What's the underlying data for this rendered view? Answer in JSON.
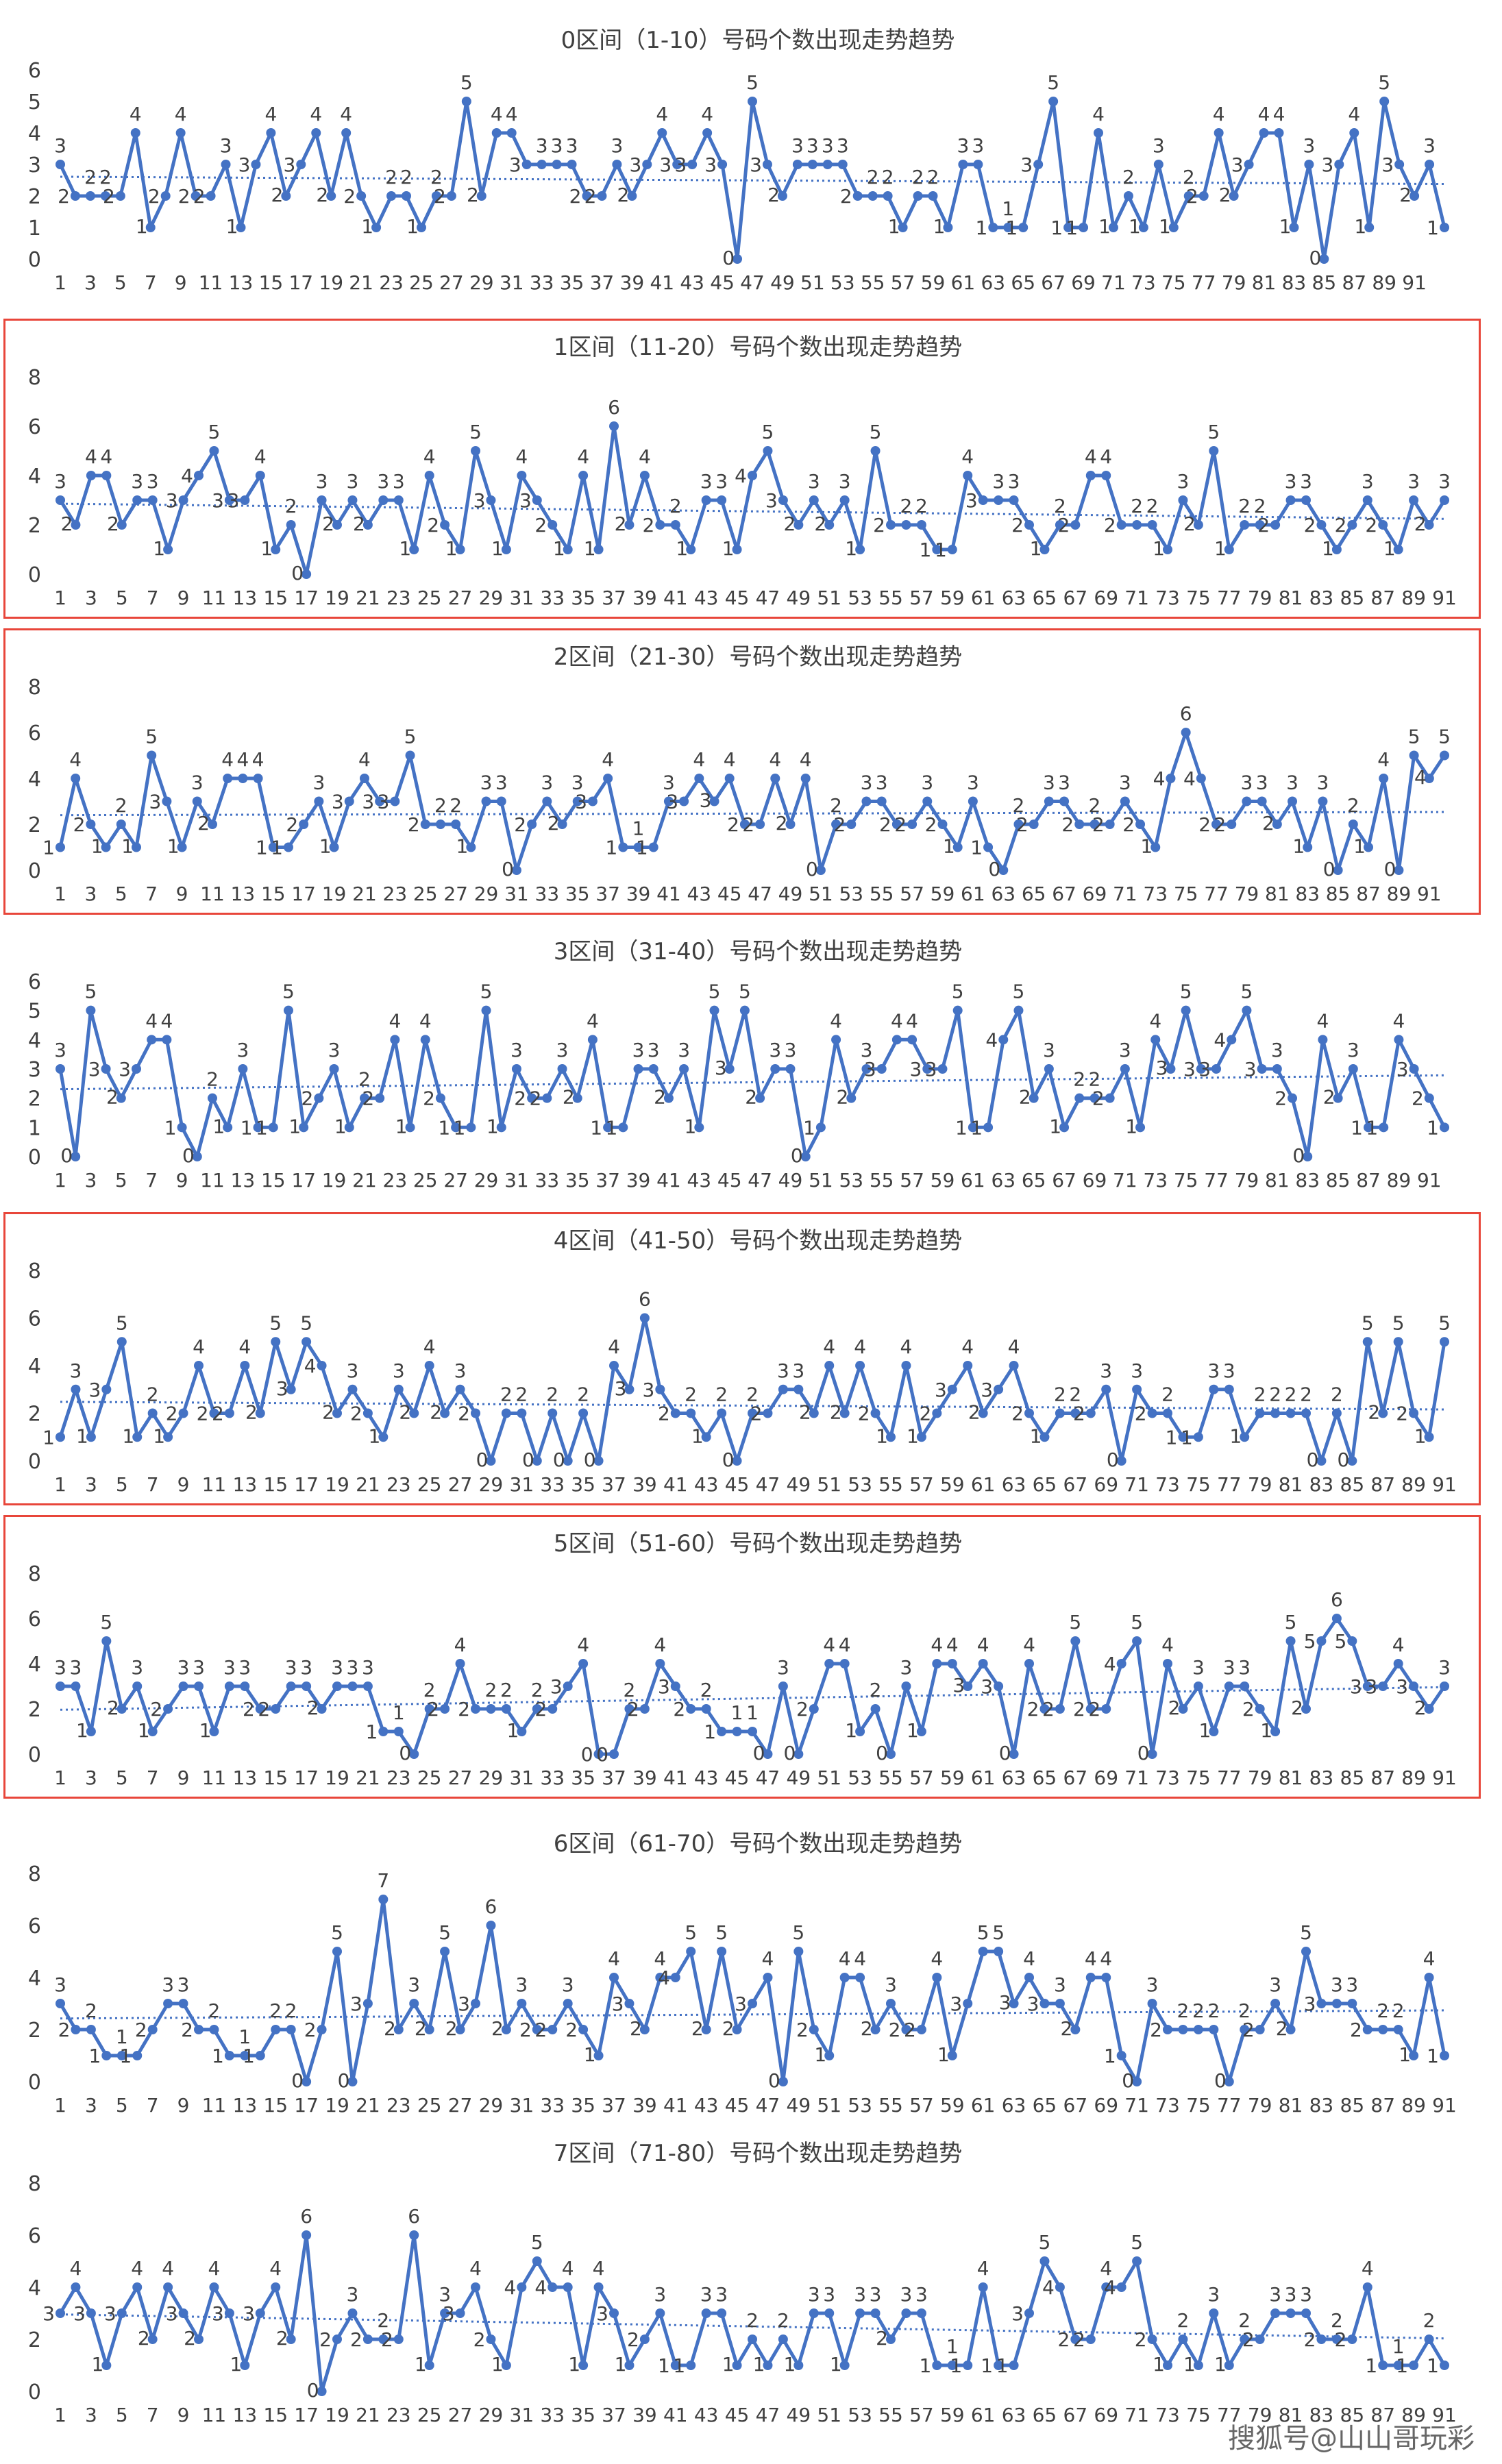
{
  "colors": {
    "line": "#4472c4",
    "trend": "#4472c4",
    "frame": "#e8463a",
    "grid": "#d9d9d9"
  },
  "footer": "搜狐号@山山哥玩彩",
  "chart_data": [
    {
      "type": "line",
      "title": "0区间（1-10）号码个数出现走势趋势",
      "ylim": [
        0,
        6
      ],
      "yticks": [
        0,
        1,
        2,
        3,
        4,
        5,
        6
      ],
      "xticks": [
        "1",
        "3",
        "5",
        "7",
        "9",
        "11",
        "13",
        "15",
        "17",
        "19",
        "21",
        "23",
        "25",
        "27",
        "29",
        "31",
        "33",
        "35",
        "37",
        "39",
        "41",
        "43",
        "45",
        "47",
        "49",
        "51",
        "53",
        "55",
        "57",
        "59",
        "61",
        "63",
        "65",
        "67",
        "69",
        "71",
        "73",
        "75",
        "77",
        "79",
        "81",
        "83",
        "85",
        "87",
        "89",
        "91"
      ],
      "values": [
        3,
        2,
        2,
        2,
        2,
        4,
        1,
        2,
        4,
        2,
        2,
        3,
        1,
        3,
        4,
        2,
        3,
        4,
        2,
        4,
        2,
        1,
        2,
        2,
        1,
        2,
        2,
        5,
        2,
        4,
        4,
        3,
        3,
        3,
        3,
        2,
        2,
        3,
        2,
        3,
        4,
        3,
        3,
        4,
        3,
        0,
        5,
        3,
        2,
        3,
        3,
        3,
        3,
        2,
        2,
        2,
        1,
        2,
        2,
        1,
        3,
        3,
        1,
        1,
        1,
        3,
        5,
        1,
        1,
        4,
        1,
        2,
        1,
        3,
        1,
        2,
        2,
        4,
        2,
        3,
        4,
        4,
        1,
        3,
        0,
        3,
        4,
        1,
        5,
        3,
        2,
        3,
        1
      ]
    },
    {
      "type": "line",
      "title": "1区间（11-20）号码个数出现走势趋势",
      "ylim": [
        0,
        8
      ],
      "yticks": [
        0,
        2,
        4,
        6,
        8
      ],
      "xticks": [
        "1",
        "3",
        "5",
        "7",
        "9",
        "11",
        "13",
        "15",
        "17",
        "19",
        "21",
        "23",
        "25",
        "27",
        "29",
        "31",
        "33",
        "35",
        "37",
        "39",
        "41",
        "43",
        "45",
        "47",
        "49",
        "51",
        "53",
        "55",
        "57",
        "59",
        "61",
        "63",
        "65",
        "67",
        "69",
        "71",
        "73",
        "75",
        "77",
        "79",
        "81",
        "83",
        "85",
        "87",
        "89",
        "91"
      ],
      "values": [
        3,
        2,
        4,
        4,
        2,
        3,
        3,
        1,
        3,
        4,
        5,
        3,
        3,
        4,
        1,
        2,
        0,
        3,
        2,
        3,
        2,
        3,
        3,
        1,
        4,
        2,
        1,
        5,
        3,
        1,
        4,
        3,
        2,
        1,
        4,
        1,
        6,
        2,
        4,
        2,
        2,
        1,
        3,
        3,
        1,
        4,
        5,
        3,
        2,
        3,
        2,
        3,
        1,
        5,
        2,
        2,
        2,
        1,
        1,
        4,
        3,
        3,
        3,
        2,
        1,
        2,
        2,
        4,
        4,
        2,
        2,
        2,
        1,
        3,
        2,
        5,
        1,
        2,
        2,
        2,
        3,
        3,
        2,
        1,
        2,
        3,
        2,
        1,
        3,
        2,
        3
      ]
    },
    {
      "type": "line",
      "title": "2区间（21-30）号码个数出现走势趋势",
      "ylim": [
        0,
        8
      ],
      "yticks": [
        0,
        2,
        4,
        6,
        8
      ],
      "xticks": [
        "1",
        "3",
        "5",
        "7",
        "9",
        "11",
        "13",
        "15",
        "17",
        "19",
        "21",
        "23",
        "25",
        "27",
        "29",
        "31",
        "33",
        "35",
        "37",
        "39",
        "41",
        "43",
        "45",
        "47",
        "49",
        "51",
        "53",
        "55",
        "57",
        "59",
        "61",
        "63",
        "65",
        "67",
        "69",
        "71",
        "73",
        "75",
        "77",
        "79",
        "81",
        "83",
        "85",
        "87",
        "89",
        "91"
      ],
      "values": [
        1,
        4,
        2,
        1,
        2,
        1,
        5,
        3,
        1,
        3,
        2,
        4,
        4,
        4,
        1,
        1,
        2,
        3,
        1,
        3,
        4,
        3,
        3,
        5,
        2,
        2,
        2,
        1,
        3,
        3,
        0,
        2,
        3,
        2,
        3,
        3,
        4,
        1,
        1,
        1,
        3,
        3,
        4,
        3,
        4,
        2,
        2,
        4,
        2,
        4,
        0,
        2,
        2,
        3,
        3,
        2,
        2,
        3,
        2,
        1,
        3,
        1,
        0,
        2,
        2,
        3,
        3,
        2,
        2,
        2,
        3,
        2,
        1,
        4,
        6,
        4,
        2,
        2,
        3,
        3,
        2,
        3,
        1,
        3,
        0,
        2,
        1,
        4,
        0,
        5,
        4,
        5
      ]
    },
    {
      "type": "line",
      "title": "3区间（31-40）号码个数出现走势趋势",
      "ylim": [
        0,
        6
      ],
      "yticks": [
        0,
        1,
        2,
        3,
        4,
        5,
        6
      ],
      "xticks": [
        "1",
        "3",
        "5",
        "7",
        "9",
        "11",
        "13",
        "15",
        "17",
        "19",
        "21",
        "23",
        "25",
        "27",
        "29",
        "31",
        "33",
        "35",
        "37",
        "39",
        "41",
        "43",
        "45",
        "47",
        "49",
        "51",
        "53",
        "55",
        "57",
        "59",
        "61",
        "63",
        "65",
        "67",
        "69",
        "71",
        "73",
        "75",
        "77",
        "79",
        "81",
        "83",
        "85",
        "87",
        "89",
        "91"
      ],
      "values": [
        3,
        0,
        5,
        3,
        2,
        3,
        4,
        4,
        1,
        0,
        2,
        1,
        3,
        1,
        1,
        5,
        1,
        2,
        3,
        1,
        2,
        2,
        4,
        1,
        4,
        2,
        1,
        1,
        5,
        1,
        3,
        2,
        2,
        3,
        2,
        4,
        1,
        1,
        3,
        3,
        2,
        3,
        1,
        5,
        3,
        5,
        2,
        3,
        3,
        0,
        1,
        4,
        2,
        3,
        3,
        4,
        4,
        3,
        3,
        5,
        1,
        1,
        4,
        5,
        2,
        3,
        1,
        2,
        2,
        2,
        3,
        1,
        4,
        3,
        5,
        3,
        3,
        4,
        5,
        3,
        3,
        2,
        0,
        4,
        2,
        3,
        1,
        1,
        4,
        3,
        2,
        1
      ]
    },
    {
      "type": "line",
      "title": "4区间（41-50）号码个数出现走势趋势",
      "ylim": [
        0,
        8
      ],
      "yticks": [
        0,
        2,
        4,
        6,
        8
      ],
      "xticks": [
        "1",
        "3",
        "5",
        "7",
        "9",
        "11",
        "13",
        "15",
        "17",
        "19",
        "21",
        "23",
        "25",
        "27",
        "29",
        "31",
        "33",
        "35",
        "37",
        "39",
        "41",
        "43",
        "45",
        "47",
        "49",
        "51",
        "53",
        "55",
        "57",
        "59",
        "61",
        "63",
        "65",
        "67",
        "69",
        "71",
        "73",
        "75",
        "77",
        "79",
        "81",
        "83",
        "85",
        "87",
        "89",
        "91"
      ],
      "values": [
        1,
        3,
        1,
        3,
        5,
        1,
        2,
        1,
        2,
        4,
        2,
        2,
        4,
        2,
        5,
        3,
        5,
        4,
        2,
        3,
        2,
        1,
        3,
        2,
        4,
        2,
        3,
        2,
        0,
        2,
        2,
        0,
        2,
        0,
        2,
        0,
        4,
        3,
        6,
        3,
        2,
        2,
        1,
        2,
        0,
        2,
        2,
        3,
        3,
        2,
        4,
        2,
        4,
        2,
        1,
        4,
        1,
        2,
        3,
        4,
        2,
        3,
        4,
        2,
        1,
        2,
        2,
        2,
        3,
        0,
        3,
        2,
        2,
        1,
        1,
        3,
        3,
        1,
        2,
        2,
        2,
        2,
        0,
        2,
        0,
        5,
        2,
        5,
        2,
        1,
        5
      ]
    },
    {
      "type": "line",
      "title": "5区间（51-60）号码个数出现走势趋势",
      "ylim": [
        0,
        8
      ],
      "yticks": [
        0,
        2,
        4,
        6,
        8
      ],
      "xticks": [
        "1",
        "3",
        "5",
        "7",
        "9",
        "11",
        "13",
        "15",
        "17",
        "19",
        "21",
        "23",
        "25",
        "27",
        "29",
        "31",
        "33",
        "35",
        "37",
        "39",
        "41",
        "43",
        "45",
        "47",
        "49",
        "51",
        "53",
        "55",
        "57",
        "59",
        "61",
        "63",
        "65",
        "67",
        "69",
        "71",
        "73",
        "75",
        "77",
        "79",
        "81",
        "83",
        "85",
        "87",
        "89",
        "91"
      ],
      "values": [
        3,
        3,
        1,
        5,
        2,
        3,
        1,
        2,
        3,
        3,
        1,
        3,
        3,
        2,
        2,
        3,
        3,
        2,
        3,
        3,
        3,
        1,
        1,
        0,
        2,
        2,
        4,
        2,
        2,
        2,
        1,
        2,
        2,
        3,
        4,
        0,
        0,
        2,
        2,
        4,
        3,
        2,
        2,
        1,
        1,
        1,
        0,
        3,
        0,
        2,
        4,
        4,
        1,
        2,
        0,
        3,
        1,
        4,
        4,
        3,
        4,
        3,
        0,
        4,
        2,
        2,
        5,
        2,
        2,
        4,
        5,
        0,
        4,
        2,
        3,
        1,
        3,
        3,
        2,
        1,
        5,
        2,
        5,
        6,
        5,
        3,
        3,
        4,
        3,
        2,
        3
      ]
    },
    {
      "type": "line",
      "title": "6区间（61-70）号码个数出现走势趋势",
      "ylim": [
        0,
        8
      ],
      "yticks": [
        0,
        2,
        4,
        6,
        8
      ],
      "xticks": [
        "1",
        "3",
        "5",
        "7",
        "9",
        "11",
        "13",
        "15",
        "17",
        "19",
        "21",
        "23",
        "25",
        "27",
        "29",
        "31",
        "33",
        "35",
        "37",
        "39",
        "41",
        "43",
        "45",
        "47",
        "49",
        "51",
        "53",
        "55",
        "57",
        "59",
        "61",
        "63",
        "65",
        "67",
        "69",
        "71",
        "73",
        "75",
        "77",
        "79",
        "81",
        "83",
        "85",
        "87",
        "89",
        "91"
      ],
      "values": [
        3,
        2,
        2,
        1,
        1,
        1,
        2,
        3,
        3,
        2,
        2,
        1,
        1,
        1,
        2,
        2,
        0,
        2,
        5,
        0,
        3,
        7,
        2,
        3,
        2,
        5,
        2,
        3,
        6,
        2,
        3,
        2,
        2,
        3,
        2,
        1,
        4,
        3,
        2,
        4,
        4,
        5,
        2,
        5,
        2,
        3,
        4,
        0,
        5,
        2,
        1,
        4,
        4,
        2,
        3,
        2,
        2,
        4,
        1,
        3,
        5,
        5,
        3,
        4,
        3,
        3,
        2,
        4,
        4,
        1,
        0,
        3,
        2,
        2,
        2,
        2,
        0,
        2,
        2,
        3,
        2,
        5,
        3,
        3,
        3,
        2,
        2,
        2,
        1,
        4,
        1
      ]
    },
    {
      "type": "line",
      "title": "7区间（71-80）号码个数出现走势趋势",
      "ylim": [
        0,
        8
      ],
      "yticks": [
        0,
        2,
        4,
        6,
        8
      ],
      "xticks": [
        "1",
        "3",
        "5",
        "7",
        "9",
        "11",
        "13",
        "15",
        "17",
        "19",
        "21",
        "23",
        "25",
        "27",
        "29",
        "31",
        "33",
        "35",
        "37",
        "39",
        "41",
        "43",
        "45",
        "47",
        "49",
        "51",
        "53",
        "55",
        "57",
        "59",
        "61",
        "63",
        "65",
        "67",
        "69",
        "71",
        "73",
        "75",
        "77",
        "79",
        "81",
        "83",
        "85",
        "87",
        "89",
        "91"
      ],
      "values": [
        3,
        4,
        3,
        1,
        3,
        4,
        2,
        4,
        3,
        2,
        4,
        3,
        1,
        3,
        4,
        2,
        6,
        0,
        2,
        3,
        2,
        2,
        2,
        6,
        1,
        3,
        3,
        4,
        2,
        1,
        4,
        5,
        4,
        4,
        1,
        4,
        3,
        1,
        2,
        3,
        1,
        1,
        3,
        3,
        1,
        2,
        1,
        2,
        1,
        3,
        3,
        1,
        3,
        3,
        2,
        3,
        3,
        1,
        1,
        1,
        4,
        1,
        1,
        3,
        5,
        4,
        2,
        2,
        4,
        4,
        5,
        2,
        1,
        2,
        1,
        3,
        1,
        2,
        2,
        3,
        3,
        3,
        2,
        2,
        2,
        4,
        1,
        1,
        1,
        2,
        1
      ]
    }
  ]
}
